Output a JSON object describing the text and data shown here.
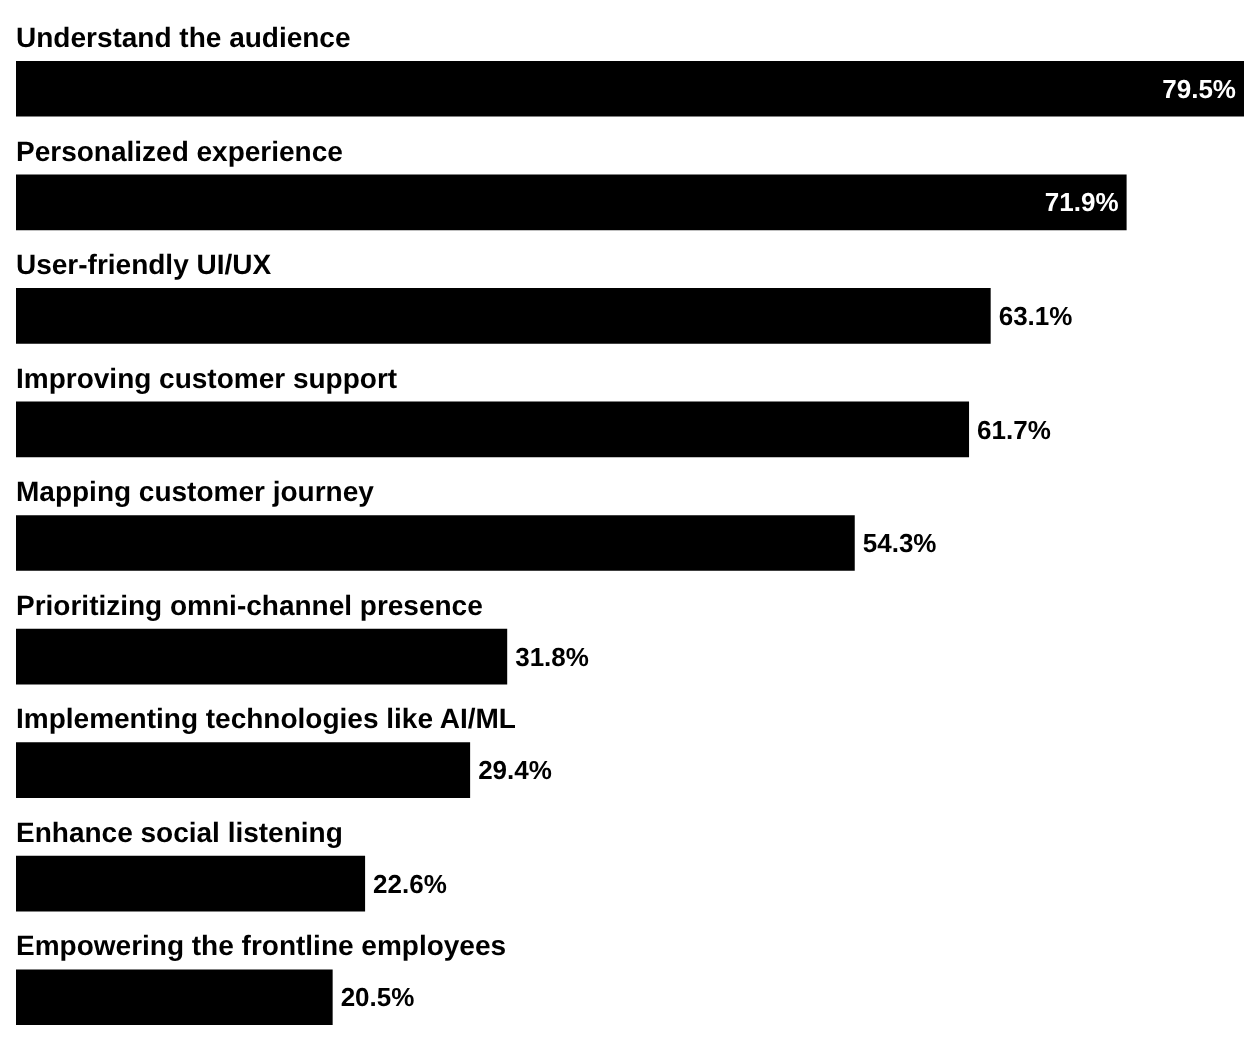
{
  "chart_data": {
    "type": "bar",
    "orientation": "horizontal",
    "categories": [
      "Understand the audience",
      "Personalized experience",
      "User-friendly UI/UX",
      "Improving customer support",
      "Mapping customer journey",
      "Prioritizing omni-channel presence",
      "Implementing technologies like AI/ML",
      "Enhance social listening",
      "Empowering the frontline employees"
    ],
    "values": [
      79.5,
      71.9,
      63.1,
      61.7,
      54.3,
      31.8,
      29.4,
      22.6,
      20.5
    ],
    "value_labels": [
      "79.5%",
      "71.9%",
      "63.1%",
      "61.7%",
      "54.3%",
      "31.8%",
      "29.4%",
      "22.6%",
      "20.5%"
    ],
    "color": "#000000",
    "legend": false
  }
}
